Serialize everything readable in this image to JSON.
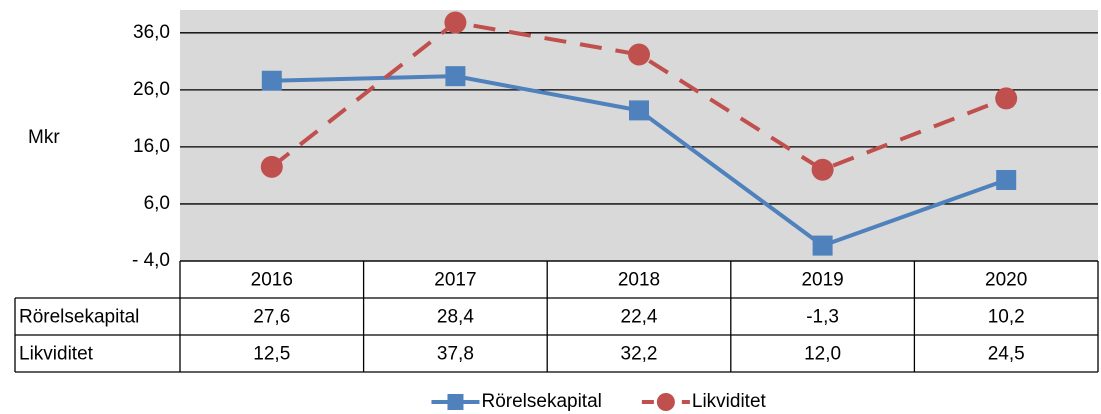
{
  "chart_data": {
    "type": "line",
    "ylabel": "Mkr",
    "categories": [
      "2016",
      "2017",
      "2018",
      "2019",
      "2020"
    ],
    "series": [
      {
        "name": "Rörelsekapital",
        "color": "#4f81bd",
        "marker": "square",
        "dashed": false,
        "values": [
          27.6,
          28.4,
          22.4,
          -1.3,
          10.2
        ],
        "value_labels": [
          "27,6",
          "28,4",
          "22,4",
          "-1,3",
          "10,2"
        ]
      },
      {
        "name": "Likviditet",
        "color": "#c0504d",
        "marker": "circle",
        "dashed": true,
        "values": [
          12.5,
          37.8,
          32.2,
          12.0,
          24.5
        ],
        "value_labels": [
          "12,5",
          "37,8",
          "32,2",
          "12,0",
          "24,5"
        ]
      }
    ],
    "ylim": [
      -4,
      40
    ],
    "yticks": [
      {
        "value": -4,
        "label": "- 4,0"
      },
      {
        "value": 6,
        "label": "6,0"
      },
      {
        "value": 16,
        "label": "16,0"
      },
      {
        "value": 26,
        "label": "26,0"
      },
      {
        "value": 36,
        "label": "36,0"
      }
    ],
    "grid": true,
    "data_table": true,
    "legend": "bottom"
  }
}
